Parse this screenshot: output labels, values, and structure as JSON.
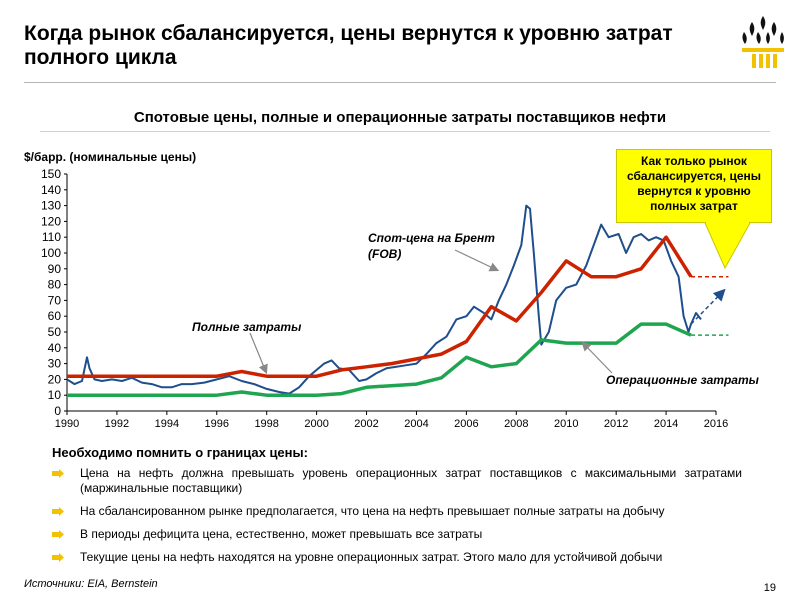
{
  "slide": {
    "title": "Когда рынок сбалансируется, цены вернутся к уровню затрат полного цикла",
    "page_number": "19",
    "source": "Источники: EIA, Bernstein"
  },
  "chart_data": {
    "type": "line",
    "title": "Спотовые цены, полные и операционные затраты поставщиков нефти",
    "ylabel": "$/барр. (номинальные цены)",
    "ylim": [
      0,
      150
    ],
    "xlim": [
      1990,
      2016
    ],
    "yticks": [
      0,
      10,
      20,
      30,
      40,
      50,
      60,
      70,
      80,
      90,
      100,
      110,
      120,
      130,
      140,
      150
    ],
    "xticks": [
      "1990",
      "1992",
      "1994",
      "1996",
      "1998",
      "2000",
      "2002",
      "2004",
      "2006",
      "2008",
      "2010",
      "2012",
      "2014",
      "2016"
    ],
    "grid": false,
    "colors": {
      "spot": "#1f4e8c",
      "full": "#cc2200",
      "operating": "#1fa550"
    },
    "series": [
      {
        "name": "Спот-цена на Брент (FOB)",
        "x": [
          1990.0,
          1990.3,
          1990.6,
          1990.8,
          1990.9,
          1991.1,
          1991.4,
          1991.8,
          1992.2,
          1992.6,
          1993.0,
          1993.4,
          1993.8,
          1994.2,
          1994.6,
          1995.0,
          1995.5,
          1996.0,
          1996.5,
          1997.0,
          1997.5,
          1998.0,
          1998.5,
          1998.9,
          1999.3,
          1999.7,
          2000.0,
          2000.3,
          2000.6,
          2000.9,
          2001.3,
          2001.7,
          2002.0,
          2002.4,
          2002.8,
          2003.2,
          2003.6,
          2004.0,
          2004.4,
          2004.8,
          2005.2,
          2005.6,
          2006.0,
          2006.3,
          2006.7,
          2007.0,
          2007.3,
          2007.6,
          2007.9,
          2008.2,
          2008.4,
          2008.55,
          2008.7,
          2008.9,
          2009.0,
          2009.3,
          2009.6,
          2010.0,
          2010.4,
          2010.8,
          2011.1,
          2011.4,
          2011.7,
          2012.1,
          2012.4,
          2012.7,
          2013.0,
          2013.3,
          2013.6,
          2013.9,
          2014.2,
          2014.5,
          2014.7,
          2014.9,
          2015.0,
          2015.2,
          2015.4
        ],
        "values": [
          20,
          17,
          19,
          34,
          27,
          20,
          19,
          20,
          19,
          21,
          18,
          17,
          15,
          15,
          17,
          17,
          18,
          20,
          22,
          19,
          17,
          14,
          12,
          11,
          15,
          22,
          26,
          30,
          32,
          27,
          26,
          19,
          20,
          24,
          27,
          28,
          29,
          30,
          36,
          43,
          47,
          58,
          60,
          66,
          62,
          58,
          70,
          80,
          92,
          105,
          130,
          128,
          100,
          60,
          42,
          50,
          70,
          78,
          80,
          92,
          105,
          118,
          110,
          112,
          100,
          110,
          112,
          108,
          110,
          108,
          95,
          85,
          60,
          50,
          55,
          62,
          58
        ]
      },
      {
        "name": "Полные затраты",
        "x": [
          1990.0,
          1994.0,
          1996.0,
          1997.0,
          1998.0,
          2000.0,
          2001.0,
          2002.0,
          2003.0,
          2004.0,
          2005.0,
          2006.0,
          2007.0,
          2008.0,
          2009.0,
          2010.0,
          2011.0,
          2012.0,
          2013.0,
          2014.0,
          2015.0
        ],
        "values": [
          22,
          22,
          22,
          25,
          22,
          22,
          26,
          28,
          30,
          33,
          36,
          44,
          66,
          57,
          75,
          95,
          85,
          85,
          90,
          110,
          85
        ]
      },
      {
        "name": "Операционные затраты",
        "x": [
          1990.0,
          1994.0,
          1996.0,
          1997.0,
          1998.0,
          2000.0,
          2001.0,
          2002.0,
          2004.0,
          2005.0,
          2006.0,
          2007.0,
          2008.0,
          2009.0,
          2010.0,
          2011.0,
          2012.0,
          2013.0,
          2014.0,
          2015.0
        ],
        "values": [
          10,
          10,
          10,
          12,
          10,
          10,
          11,
          15,
          17,
          21,
          34,
          28,
          30,
          45,
          43,
          43,
          43,
          55,
          55,
          48
        ]
      }
    ],
    "annotations": [
      {
        "label": "Спот-цена на Брент (FOB)",
        "x": 2007.5,
        "y": 100
      },
      {
        "label": "Полные затраты",
        "x": 1998.0,
        "y": 25
      },
      {
        "label": "Операционные затраты",
        "x": 2010.5,
        "y": 43
      }
    ],
    "projections": [
      {
        "series": "full",
        "from": [
          2015.0,
          85
        ],
        "to": [
          2016.5,
          85
        ],
        "arrow": false
      },
      {
        "series": "spot",
        "from": [
          2015.0,
          55
        ],
        "to": [
          2016.3,
          76
        ],
        "arrow": true
      },
      {
        "series": "operating",
        "from": [
          2015.0,
          48
        ],
        "to": [
          2016.5,
          48
        ],
        "arrow": false
      }
    ],
    "callout": "Как только рынок сбалансируется, цены вернутся к уровню полных затрат"
  },
  "notes": {
    "heading": "Необходимо помнить о границах цены:",
    "bullets": [
      "Цена на нефть должна превышать уровень операционных затрат поставщиков с максимальными затратами (маржинальные поставщики)",
      "На сбалансированном рынке предполагается, что цена на нефть превышает полные затраты на добычу",
      "В периоды дефицита цена, естественно, может превышать все затраты",
      "Текущие цены на нефть находятся на уровне операционных затрат. Этого мало для устойчивой добычи"
    ],
    "bullet_color": "#f2c200"
  }
}
